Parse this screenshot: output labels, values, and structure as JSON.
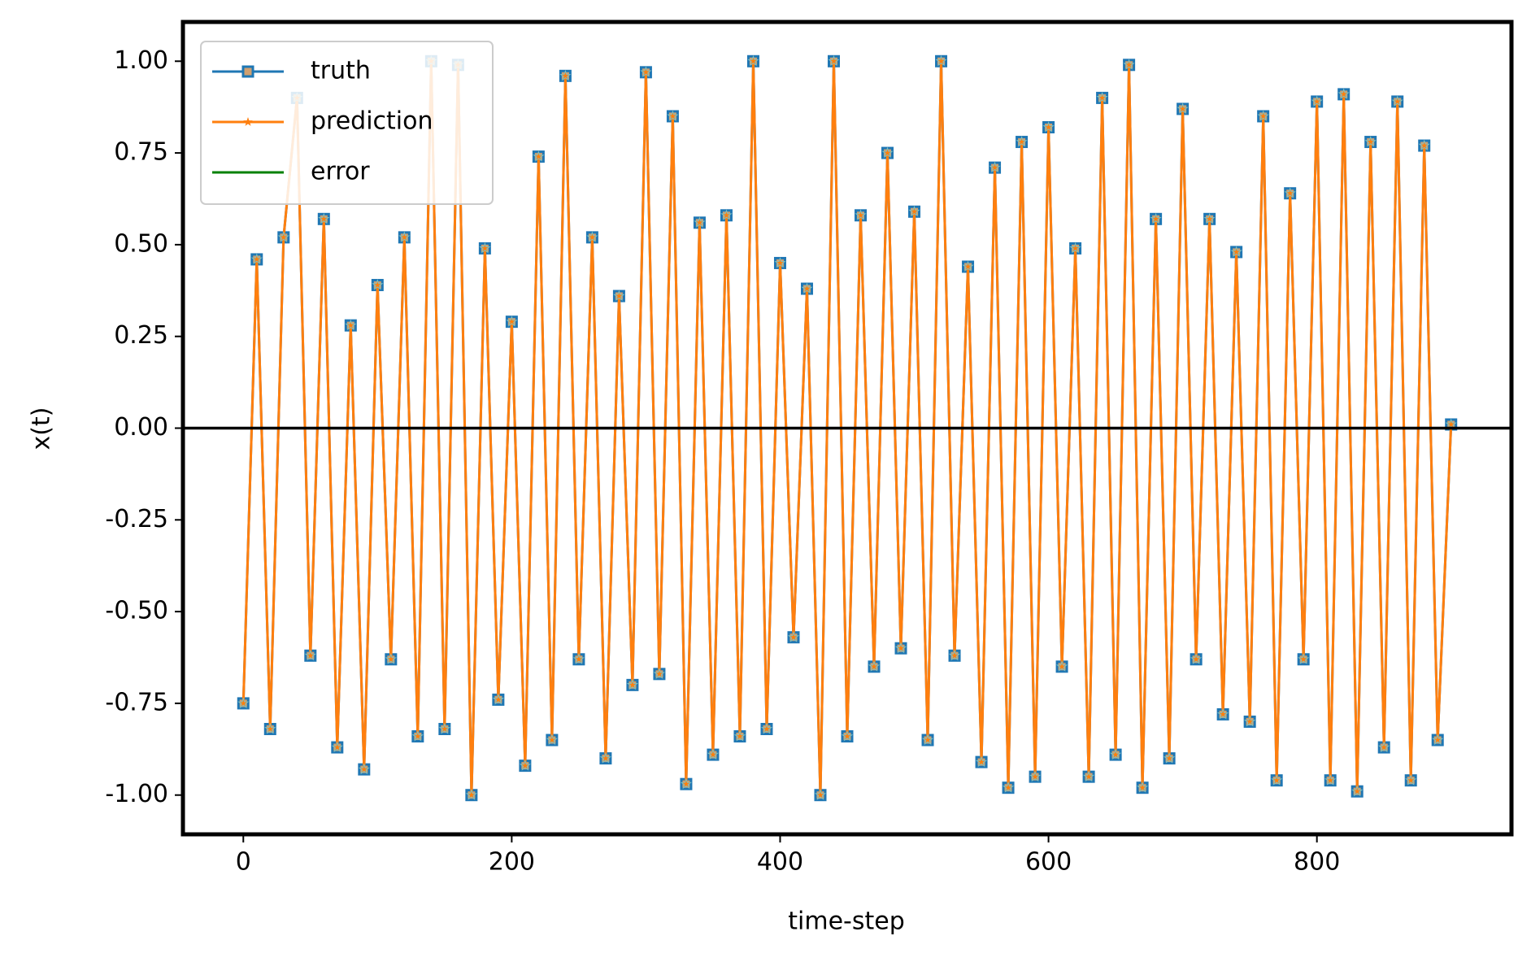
{
  "chart_data": {
    "type": "line",
    "xlabel": "time-step",
    "ylabel": "x(t)",
    "x": [
      0,
      10,
      20,
      30,
      40,
      50,
      60,
      70,
      80,
      90,
      100,
      110,
      120,
      130,
      140,
      150,
      160,
      170,
      180,
      190,
      200,
      210,
      220,
      230,
      240,
      250,
      260,
      270,
      280,
      290,
      300,
      310,
      320,
      330,
      340,
      350,
      360,
      370,
      380,
      390,
      400,
      410,
      420,
      430,
      440,
      450,
      460,
      470,
      480,
      490,
      500,
      510,
      520,
      530,
      540,
      550,
      560,
      570,
      580,
      590,
      600,
      610,
      620,
      630,
      640,
      650,
      660,
      670,
      680,
      690,
      700,
      710,
      720,
      730,
      740,
      750,
      760,
      770,
      780,
      790,
      800,
      810,
      820,
      830,
      840,
      850,
      860,
      870,
      880,
      890,
      900
    ],
    "series": [
      {
        "name": "truth",
        "color": "#1f77b4",
        "marker": "square",
        "values": [
          -0.75,
          0.46,
          -0.82,
          0.52,
          0.9,
          -0.62,
          0.57,
          -0.87,
          0.28,
          -0.93,
          0.39,
          -0.63,
          0.52,
          -0.84,
          1.0,
          -0.82,
          0.99,
          -1.0,
          0.49,
          -0.74,
          0.29,
          -0.92,
          0.74,
          -0.85,
          0.96,
          -0.63,
          0.52,
          -0.9,
          0.36,
          -0.7,
          0.97,
          -0.67,
          0.85,
          -0.97,
          0.56,
          -0.89,
          0.58,
          -0.84,
          1.0,
          -0.82,
          0.45,
          -0.57,
          0.38,
          -1.0,
          1.0,
          -0.84,
          0.58,
          -0.65,
          0.75,
          -0.6,
          0.59,
          -0.85,
          1.0,
          -0.62,
          0.44,
          -0.91,
          0.71,
          -0.98,
          0.78,
          -0.95,
          0.82,
          -0.65,
          0.49,
          -0.95,
          0.9,
          -0.89,
          0.99,
          -0.98,
          0.57,
          -0.9,
          0.87,
          -0.63,
          0.57,
          -0.78,
          0.48,
          -0.8,
          0.85,
          -0.96,
          0.64,
          -0.63,
          0.89,
          -0.96,
          0.91,
          -0.99,
          0.78,
          -0.87,
          0.89,
          -0.96,
          0.77,
          -0.85,
          0.01
        ]
      },
      {
        "name": "prediction",
        "color": "#ff7f0e",
        "marker": "star",
        "values": [
          -0.75,
          0.46,
          -0.82,
          0.52,
          0.9,
          -0.62,
          0.57,
          -0.87,
          0.28,
          -0.93,
          0.39,
          -0.63,
          0.52,
          -0.84,
          1.0,
          -0.82,
          0.99,
          -1.0,
          0.49,
          -0.74,
          0.29,
          -0.92,
          0.74,
          -0.85,
          0.96,
          -0.63,
          0.52,
          -0.9,
          0.36,
          -0.7,
          0.97,
          -0.67,
          0.85,
          -0.97,
          0.56,
          -0.89,
          0.58,
          -0.84,
          1.0,
          -0.82,
          0.45,
          -0.57,
          0.38,
          -1.0,
          1.0,
          -0.84,
          0.58,
          -0.65,
          0.75,
          -0.6,
          0.59,
          -0.85,
          1.0,
          -0.62,
          0.44,
          -0.91,
          0.71,
          -0.98,
          0.78,
          -0.95,
          0.82,
          -0.65,
          0.49,
          -0.95,
          0.9,
          -0.89,
          0.99,
          -0.98,
          0.57,
          -0.9,
          0.87,
          -0.63,
          0.57,
          -0.78,
          0.48,
          -0.8,
          0.85,
          -0.96,
          0.64,
          -0.63,
          0.89,
          -0.96,
          0.91,
          -0.99,
          0.78,
          -0.87,
          0.89,
          -0.96,
          0.77,
          -0.85,
          0.01
        ]
      },
      {
        "name": "error",
        "color": "#008000",
        "marker": "none",
        "values": [
          0,
          0,
          0,
          0,
          0,
          0,
          0,
          0,
          0,
          0,
          0,
          0,
          0,
          0,
          0,
          0,
          0,
          0,
          0,
          0,
          0,
          0,
          0,
          0,
          0,
          0,
          0,
          0,
          0,
          0,
          0,
          0,
          0,
          0,
          0,
          0,
          0,
          0,
          0,
          0,
          0,
          0,
          0,
          0,
          0,
          0,
          0,
          0,
          0,
          0,
          0,
          0,
          0,
          0,
          0,
          0,
          0,
          0,
          0,
          0,
          0,
          0,
          0,
          0,
          0,
          0,
          0,
          0,
          0,
          0,
          0,
          0,
          0,
          0,
          0,
          0,
          0,
          0,
          0,
          0,
          0,
          0,
          0,
          0,
          0,
          0,
          0,
          0,
          0,
          0,
          0
        ]
      }
    ],
    "hlines": [
      0
    ],
    "hline_color": "#000000",
    "xlim": [
      -45,
      945
    ],
    "xticks": [
      0,
      200,
      400,
      600,
      800
    ],
    "ylim": [
      -1.107,
      1.107
    ],
    "yticks": [
      {
        "value": -1,
        "label": "-1.00"
      },
      {
        "value": -0.75,
        "label": "-0.75"
      },
      {
        "value": -0.5,
        "label": "-0.50"
      },
      {
        "value": -0.25,
        "label": "-0.25"
      },
      {
        "value": 0,
        "label": "0.00"
      },
      {
        "value": 0.25,
        "label": "0.25"
      },
      {
        "value": 0.5,
        "label": "0.50"
      },
      {
        "value": 0.75,
        "label": "0.75"
      },
      {
        "value": 1,
        "label": "1.00"
      }
    ],
    "legend": "upper left",
    "grid": false
  }
}
